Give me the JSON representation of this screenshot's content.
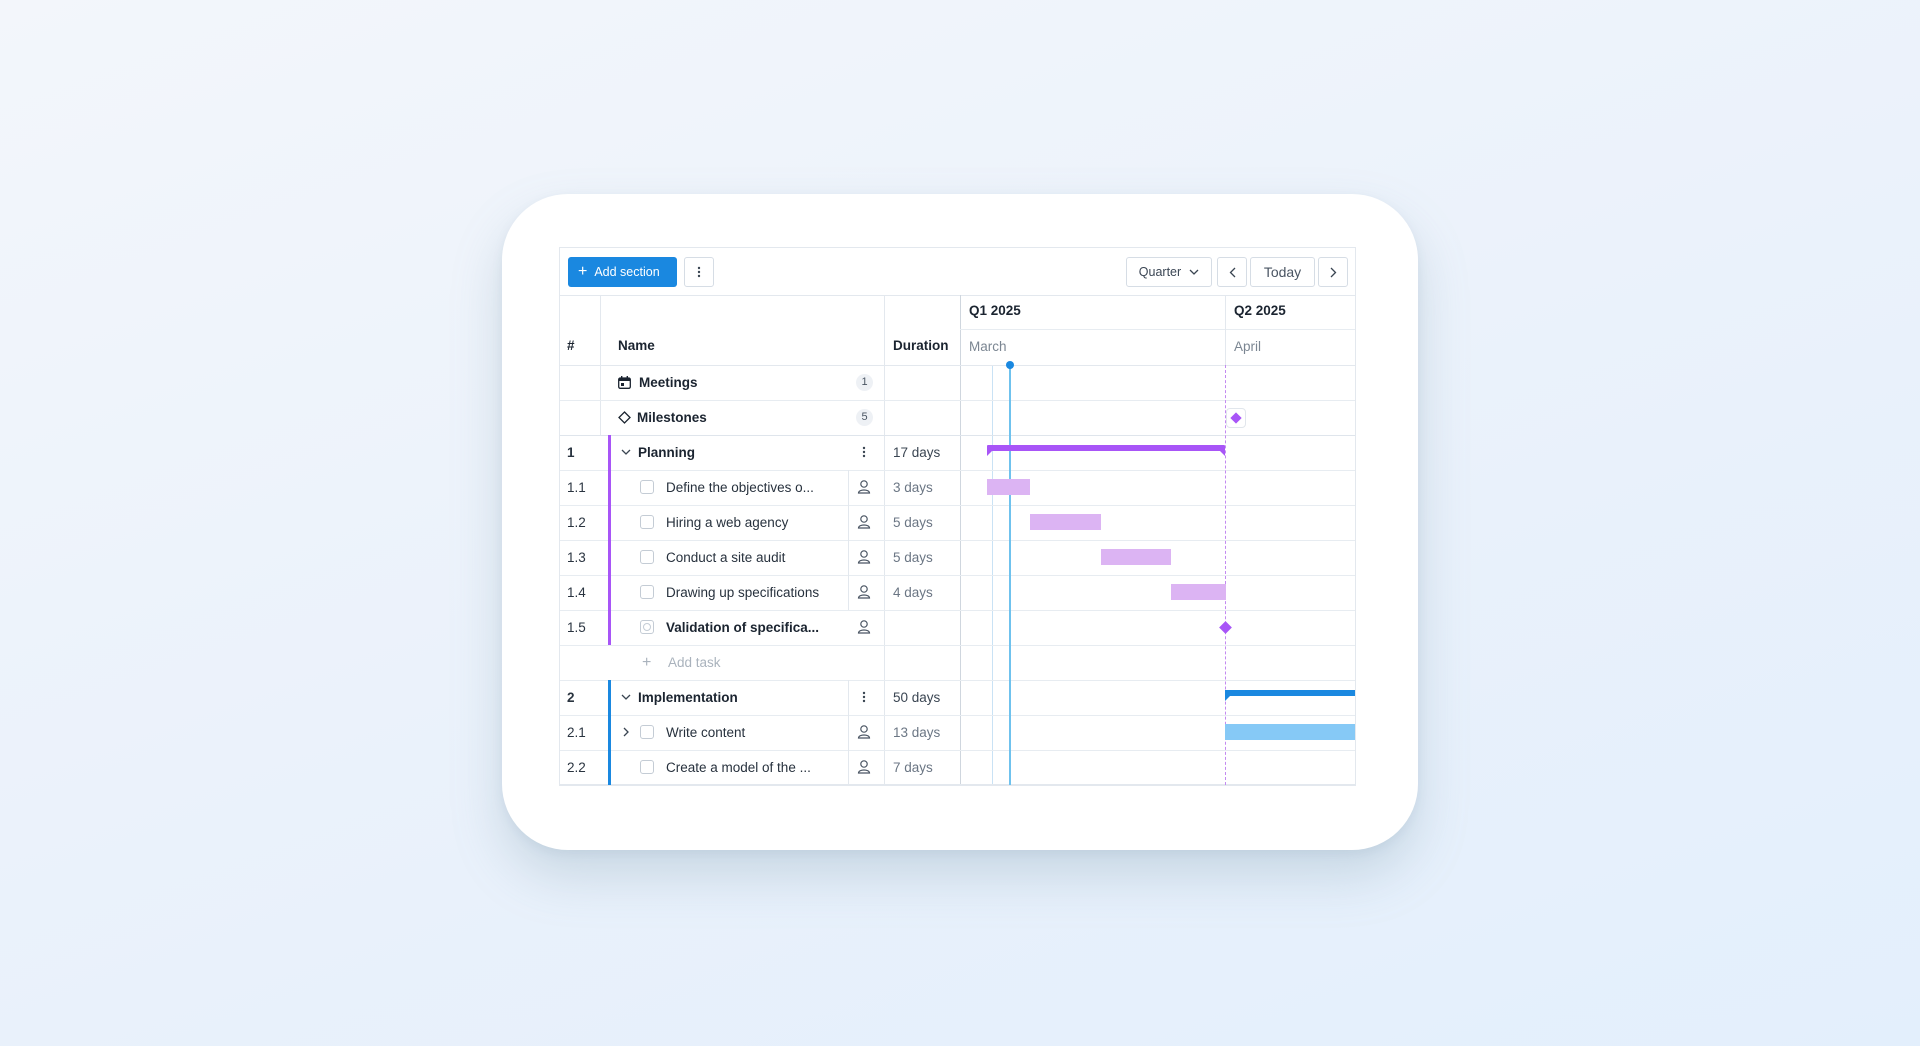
{
  "toolbar": {
    "add_section_label": "Add section",
    "view_select_value": "Quarter",
    "today_label": "Today"
  },
  "columns": {
    "num": "#",
    "name": "Name",
    "duration": "Duration"
  },
  "timeline": {
    "quarters": [
      {
        "label": "Q1 2025",
        "month": "March"
      },
      {
        "label": "Q2 2025",
        "month": "April"
      }
    ]
  },
  "groups": {
    "meetings": {
      "label": "Meetings",
      "count": "1"
    },
    "milestones": {
      "label": "Milestones",
      "count": "5"
    }
  },
  "sections": [
    {
      "num": "1",
      "name": "Planning",
      "duration": "17 days",
      "color": "#a855f7",
      "tasks": [
        {
          "num": "1.1",
          "name": "Define the objectives o...",
          "duration": "3 days"
        },
        {
          "num": "1.2",
          "name": "Hiring a web agency",
          "duration": "5 days"
        },
        {
          "num": "1.3",
          "name": "Conduct a site audit",
          "duration": "5 days"
        },
        {
          "num": "1.4",
          "name": "Drawing up specifications",
          "duration": "4 days"
        },
        {
          "num": "1.5",
          "name": "Validation of specifica...",
          "duration": ""
        }
      ],
      "add_task_label": "Add task"
    },
    {
      "num": "2",
      "name": "Implementation",
      "duration": "50 days",
      "color": "#1a88e0",
      "tasks": [
        {
          "num": "2.1",
          "name": "Write content",
          "duration": "13 days"
        },
        {
          "num": "2.2",
          "name": "Create a model of the ...",
          "duration": "7 days"
        }
      ]
    }
  ],
  "icons": {
    "meetings": "calendar-icon",
    "milestones": "diamond-icon",
    "assignee": "person-icon"
  }
}
